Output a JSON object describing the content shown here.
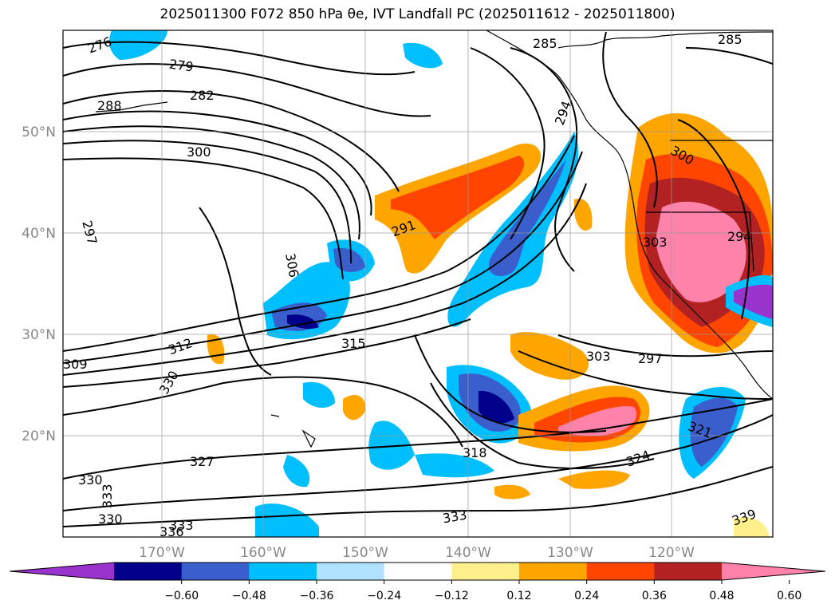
{
  "title": "2025011300 F072 850 hPa θe, IVT Landfall PC (2025011612 - 2025011800)",
  "map": {
    "lat_labels": [
      "50°N",
      "40°N",
      "30°N",
      "20°N"
    ],
    "lon_labels": [
      "170°W",
      "160°W",
      "150°W",
      "140°W",
      "130°W",
      "120°W"
    ]
  },
  "contour_labels": [
    "276",
    "279",
    "282",
    "285",
    "288",
    "300",
    "297",
    "306",
    "312",
    "315",
    "309",
    "330",
    "327",
    "333",
    "336",
    "291",
    "294",
    "303",
    "318",
    "324",
    "321",
    "285",
    "300",
    "297",
    "303",
    "294",
    "330",
    "333",
    "330",
    "333",
    "339"
  ],
  "colorbar": {
    "ticks": [
      "−0.60",
      "−0.48",
      "−0.36",
      "−0.24",
      "−0.12",
      "0.12",
      "0.24",
      "0.36",
      "0.48",
      "0.60"
    ],
    "colors": [
      "#9a32cd",
      "#00008b",
      "#3a5fcd",
      "#00bfff",
      "#b0e2ff",
      "#ffffff",
      "#fff08c",
      "#ffa500",
      "#ff4500",
      "#b22222",
      "#ff82ab"
    ]
  }
}
